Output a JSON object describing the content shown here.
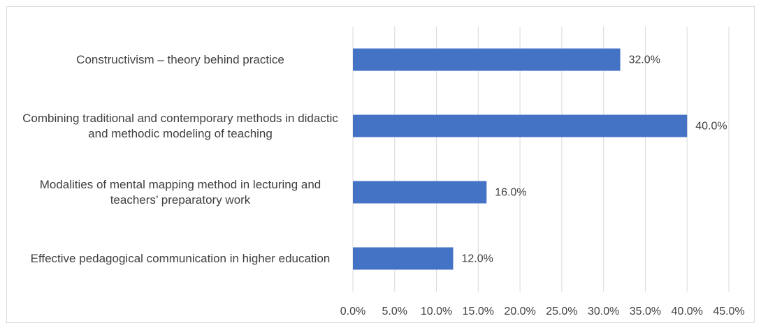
{
  "chart_data": {
    "type": "bar",
    "orientation": "horizontal",
    "categories": [
      "Constructivism – theory behind practice",
      "Combining traditional and contemporary methods in didactic and methodic modeling of teaching",
      "Modalities of mental mapping method in lecturing and teachers’ preparatory work",
      "Effective pedagogical communication in higher education"
    ],
    "values": [
      32.0,
      40.0,
      16.0,
      12.0
    ],
    "value_labels": [
      "32.0%",
      "40.0%",
      "16.0%",
      "12.0%"
    ],
    "color": "#4472c4",
    "xlim": [
      0,
      45
    ],
    "xticks": [
      {
        "value": 0,
        "label": "0.0%"
      },
      {
        "value": 5,
        "label": "5.0%"
      },
      {
        "value": 10,
        "label": "10.0%"
      },
      {
        "value": 15,
        "label": "15.0%"
      },
      {
        "value": 20,
        "label": "20.0%"
      },
      {
        "value": 25,
        "label": "25.0%"
      },
      {
        "value": 30,
        "label": "30.0%"
      },
      {
        "value": 35,
        "label": "35.0%"
      },
      {
        "value": 40,
        "label": "40.0%"
      },
      {
        "value": 45,
        "label": "45.0%"
      }
    ],
    "grid": true
  }
}
